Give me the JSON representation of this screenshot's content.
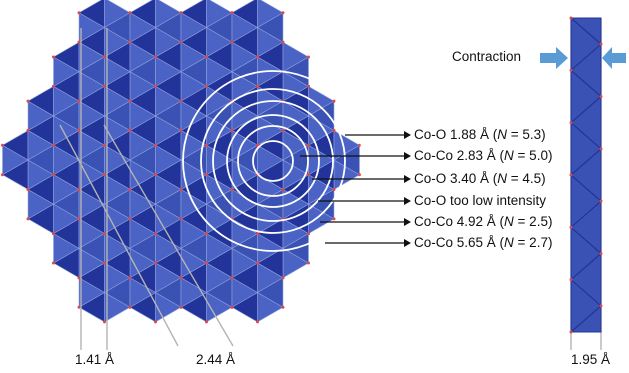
{
  "figure": {
    "colors": {
      "face_light": "#4a63c4",
      "face_mid": "#3a52b3",
      "face_dark": "#22349a",
      "edge": "#8fa0dc",
      "vertex": "#e04848",
      "ring": "#ffffff",
      "guide": "#b4b4b4",
      "arrow": "#5b9bd5",
      "text": "#111111"
    },
    "shells": [
      {
        "label": "Co-O 1.88 Å (N = 5.3)",
        "prefix": "Co-O 1.88 Å (",
        "n": "N",
        "suffix": " = 5.3)"
      },
      {
        "label": "Co-Co 2.83 Å (N = 5.0)",
        "prefix": "Co-Co 2.83 Å (",
        "n": "N",
        "suffix": " = 5.0)"
      },
      {
        "label": "Co-O 3.40 Å (N = 4.5)",
        "prefix": "Co-O 3.40 Å (",
        "n": "N",
        "suffix": " = 4.5)"
      },
      {
        "label": "Co-O too low intensity",
        "prefix": "Co-O too low intensity",
        "n": "",
        "suffix": ""
      },
      {
        "label": "Co-Co 4.92 Å (N = 2.5)",
        "prefix": "Co-Co 4.92 Å (",
        "n": "N",
        "suffix": " = 2.5)"
      },
      {
        "label": "Co-Co 5.65 Å (N = 2.7)",
        "prefix": "Co-Co 5.65 Å (",
        "n": "N",
        "suffix": " = 2.7)"
      }
    ],
    "distance_labels": {
      "a": "1.41 Å",
      "b": "2.44 Å",
      "c": "1.95 Å"
    },
    "contraction_label": "Contraction"
  }
}
